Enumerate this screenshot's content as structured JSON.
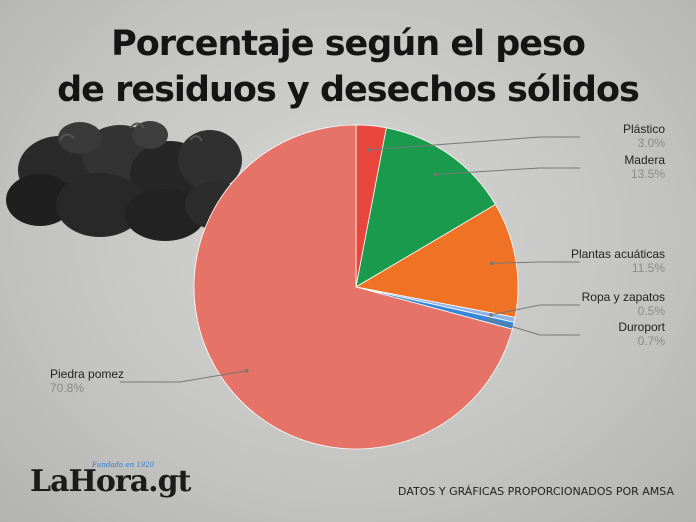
{
  "title_line1": "Porcentaje según el peso",
  "title_line2": "de residuos y desechos sólidos",
  "credits": "DATOS Y GRÁFICAS PROPORCIONADOS POR AMSA",
  "logo": {
    "text": "LaHora.gt",
    "tagline": "Fundado en 1920"
  },
  "chart_data": {
    "type": "pie",
    "title": "Porcentaje según el peso de residuos y desechos sólidos",
    "slices": [
      {
        "label": "Plástico",
        "value": 3.0,
        "pct_label": "3.0%",
        "color": "#e8453c"
      },
      {
        "label": "Madera",
        "value": 13.5,
        "pct_label": "13.5%",
        "color": "#1a9a4c"
      },
      {
        "label": "Plantas acuáticas",
        "value": 11.5,
        "pct_label": "11.5%",
        "color": "#ef7225"
      },
      {
        "label": "Ropa y zapatos",
        "value": 0.5,
        "pct_label": "0.5%",
        "color": "#8fb3e6"
      },
      {
        "label": "Duroport",
        "value": 0.7,
        "pct_label": "0.7%",
        "color": "#3a86d6"
      },
      {
        "label": "Piedra pomez",
        "value": 70.8,
        "pct_label": "70.8%",
        "color": "#e57367"
      }
    ]
  }
}
